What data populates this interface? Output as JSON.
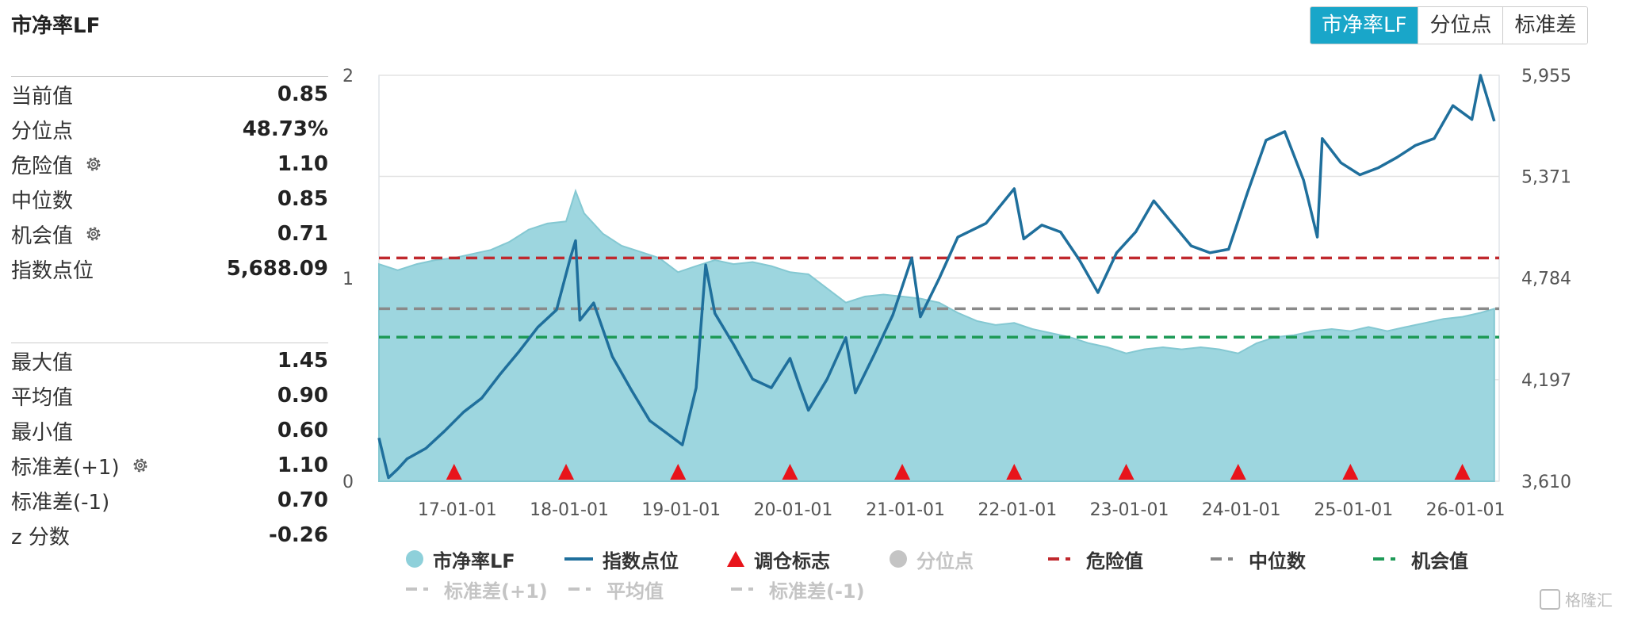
{
  "header": {
    "title": "市净率LF"
  },
  "tabs": [
    {
      "label": "市净率LF",
      "active": true
    },
    {
      "label": "分位点",
      "active": false
    },
    {
      "label": "标准差",
      "active": false
    }
  ],
  "stats_top": [
    {
      "label": "当前值",
      "value": "0.85",
      "gear": false
    },
    {
      "label": "分位点",
      "value": "48.73%",
      "gear": false
    },
    {
      "label": "危险值",
      "value": "1.10",
      "gear": true
    },
    {
      "label": "中位数",
      "value": "0.85",
      "gear": false
    },
    {
      "label": "机会值",
      "value": "0.71",
      "gear": true
    },
    {
      "label": "指数点位",
      "value": "5,688.09",
      "gear": false
    }
  ],
  "stats_bottom": [
    {
      "label": "最大值",
      "value": "1.45",
      "gear": false
    },
    {
      "label": "平均值",
      "value": "0.90",
      "gear": false
    },
    {
      "label": "最小值",
      "value": "0.60",
      "gear": false
    },
    {
      "label": "标准差(+1)",
      "value": "1.10",
      "gear": true
    },
    {
      "label": "标准差(-1)",
      "value": "0.70",
      "gear": false
    },
    {
      "label": "z 分数",
      "value": "-0.26",
      "gear": false
    }
  ],
  "legend": [
    {
      "label": "市净率LF",
      "kind": "circle",
      "color": "#8ed0da",
      "dim": false
    },
    {
      "label": "指数点位",
      "kind": "line",
      "color": "#1f6f9c",
      "dim": false
    },
    {
      "label": "调仓标志",
      "kind": "triangle",
      "color": "#e8141b",
      "dim": false
    },
    {
      "label": "分位点",
      "kind": "circle",
      "color": "#c4c4c4",
      "dim": true
    },
    {
      "label": "危险值",
      "kind": "dash",
      "color": "#c0282d",
      "dim": false
    },
    {
      "label": "中位数",
      "kind": "dash",
      "color": "#888888",
      "dim": false
    },
    {
      "label": "机会值",
      "kind": "dash",
      "color": "#1e9a57",
      "dim": false
    },
    {
      "label": "标准差(+1)",
      "kind": "dash",
      "color": "#c4c4c4",
      "dim": true
    },
    {
      "label": "平均值",
      "kind": "dash",
      "color": "#c4c4c4",
      "dim": true
    },
    {
      "label": "标准差(-1)",
      "kind": "dash",
      "color": "#c4c4c4",
      "dim": true
    }
  ],
  "watermark": "格隆汇",
  "chart_data": {
    "type": "area",
    "x_range": [
      "2016-05-01",
      "2026-05-01"
    ],
    "x_ticks": [
      {
        "date": "2017-01-01",
        "label": "17-01-01"
      },
      {
        "date": "2018-01-01",
        "label": "18-01-01"
      },
      {
        "date": "2019-01-01",
        "label": "19-01-01"
      },
      {
        "date": "2020-01-01",
        "label": "20-01-01"
      },
      {
        "date": "2021-01-01",
        "label": "21-01-01"
      },
      {
        "date": "2022-01-01",
        "label": "22-01-01"
      },
      {
        "date": "2023-01-01",
        "label": "23-01-01"
      },
      {
        "date": "2024-01-01",
        "label": "24-01-01"
      },
      {
        "date": "2025-01-01",
        "label": "25-01-01"
      },
      {
        "date": "2026-01-01",
        "label": "26-01-01"
      }
    ],
    "y_left": {
      "min": 0,
      "max": 2,
      "ticks": [
        "0",
        "1",
        "2"
      ]
    },
    "y_right": {
      "min": 3610,
      "max": 5955,
      "ticks": [
        "3,610",
        "4,197",
        "4,784",
        "5,371",
        "5,955"
      ]
    },
    "reference_lines": {
      "danger": 1.1,
      "median": 0.85,
      "opportunity": 0.71
    },
    "rebalance_markers": [
      "2017-01-01",
      "2018-01-01",
      "2019-01-01",
      "2020-01-01",
      "2021-01-01",
      "2022-01-01",
      "2023-01-01",
      "2024-01-01",
      "2025-01-01",
      "2026-01-01"
    ],
    "series": [
      {
        "name": "市净率LF",
        "axis": "left",
        "points": [
          [
            "2016-05-01",
            1.07
          ],
          [
            "2016-07-01",
            1.04
          ],
          [
            "2016-09-01",
            1.07
          ],
          [
            "2016-11-01",
            1.09
          ],
          [
            "2017-01-01",
            1.1
          ],
          [
            "2017-03-01",
            1.12
          ],
          [
            "2017-05-01",
            1.14
          ],
          [
            "2017-07-01",
            1.18
          ],
          [
            "2017-09-01",
            1.24
          ],
          [
            "2017-11-01",
            1.27
          ],
          [
            "2018-01-01",
            1.28
          ],
          [
            "2018-02-01",
            1.43
          ],
          [
            "2018-03-01",
            1.32
          ],
          [
            "2018-05-01",
            1.22
          ],
          [
            "2018-07-01",
            1.16
          ],
          [
            "2018-09-01",
            1.13
          ],
          [
            "2018-11-01",
            1.1
          ],
          [
            "2019-01-01",
            1.03
          ],
          [
            "2019-03-01",
            1.06
          ],
          [
            "2019-05-01",
            1.09
          ],
          [
            "2019-07-01",
            1.07
          ],
          [
            "2019-09-01",
            1.08
          ],
          [
            "2019-11-01",
            1.06
          ],
          [
            "2020-01-01",
            1.03
          ],
          [
            "2020-03-01",
            1.02
          ],
          [
            "2020-05-01",
            0.95
          ],
          [
            "2020-07-01",
            0.88
          ],
          [
            "2020-09-01",
            0.91
          ],
          [
            "2020-11-01",
            0.92
          ],
          [
            "2021-01-01",
            0.91
          ],
          [
            "2021-03-01",
            0.9
          ],
          [
            "2021-05-01",
            0.88
          ],
          [
            "2021-07-01",
            0.83
          ],
          [
            "2021-09-01",
            0.79
          ],
          [
            "2021-11-01",
            0.77
          ],
          [
            "2022-01-01",
            0.78
          ],
          [
            "2022-03-01",
            0.75
          ],
          [
            "2022-05-01",
            0.73
          ],
          [
            "2022-07-01",
            0.71
          ],
          [
            "2022-09-01",
            0.68
          ],
          [
            "2022-11-01",
            0.66
          ],
          [
            "2023-01-01",
            0.63
          ],
          [
            "2023-03-01",
            0.65
          ],
          [
            "2023-05-01",
            0.66
          ],
          [
            "2023-07-01",
            0.65
          ],
          [
            "2023-09-01",
            0.66
          ],
          [
            "2023-11-01",
            0.65
          ],
          [
            "2024-01-01",
            0.63
          ],
          [
            "2024-03-01",
            0.68
          ],
          [
            "2024-05-01",
            0.71
          ],
          [
            "2024-07-01",
            0.72
          ],
          [
            "2024-09-01",
            0.74
          ],
          [
            "2024-11-01",
            0.75
          ],
          [
            "2025-01-01",
            0.74
          ],
          [
            "2025-03-01",
            0.76
          ],
          [
            "2025-05-01",
            0.74
          ],
          [
            "2025-07-01",
            0.76
          ],
          [
            "2025-09-01",
            0.78
          ],
          [
            "2025-11-01",
            0.8
          ],
          [
            "2026-01-01",
            0.81
          ],
          [
            "2026-03-01",
            0.83
          ],
          [
            "2026-04-15",
            0.85
          ]
        ]
      },
      {
        "name": "指数点位",
        "axis": "right",
        "points": [
          [
            "2016-05-01",
            3860
          ],
          [
            "2016-06-01",
            3630
          ],
          [
            "2016-07-01",
            3680
          ],
          [
            "2016-08-01",
            3740
          ],
          [
            "2016-10-01",
            3800
          ],
          [
            "2016-12-01",
            3900
          ],
          [
            "2017-02-01",
            4010
          ],
          [
            "2017-04-01",
            4090
          ],
          [
            "2017-06-01",
            4230
          ],
          [
            "2017-08-01",
            4360
          ],
          [
            "2017-10-01",
            4500
          ],
          [
            "2017-12-01",
            4600
          ],
          [
            "2018-01-15",
            4900
          ],
          [
            "2018-02-01",
            5000
          ],
          [
            "2018-02-15",
            4540
          ],
          [
            "2018-04-01",
            4640
          ],
          [
            "2018-06-01",
            4330
          ],
          [
            "2018-08-01",
            4140
          ],
          [
            "2018-10-01",
            3960
          ],
          [
            "2018-12-01",
            3880
          ],
          [
            "2019-01-15",
            3820
          ],
          [
            "2019-03-01",
            4150
          ],
          [
            "2019-04-01",
            4860
          ],
          [
            "2019-05-01",
            4580
          ],
          [
            "2019-07-01",
            4400
          ],
          [
            "2019-09-01",
            4200
          ],
          [
            "2019-11-01",
            4150
          ],
          [
            "2020-01-01",
            4320
          ],
          [
            "2020-02-01",
            4160
          ],
          [
            "2020-03-01",
            4020
          ],
          [
            "2020-05-01",
            4200
          ],
          [
            "2020-07-01",
            4440
          ],
          [
            "2020-08-01",
            4120
          ],
          [
            "2020-10-01",
            4340
          ],
          [
            "2020-12-01",
            4570
          ],
          [
            "2021-02-01",
            4900
          ],
          [
            "2021-03-01",
            4560
          ],
          [
            "2021-05-01",
            4780
          ],
          [
            "2021-07-01",
            5020
          ],
          [
            "2021-10-01",
            5100
          ],
          [
            "2022-01-01",
            5300
          ],
          [
            "2022-02-01",
            5010
          ],
          [
            "2022-04-01",
            5090
          ],
          [
            "2022-06-01",
            5050
          ],
          [
            "2022-08-01",
            4890
          ],
          [
            "2022-10-01",
            4700
          ],
          [
            "2022-12-01",
            4930
          ],
          [
            "2023-02-01",
            5050
          ],
          [
            "2023-04-01",
            5230
          ],
          [
            "2023-06-01",
            5100
          ],
          [
            "2023-08-01",
            4970
          ],
          [
            "2023-10-01",
            4930
          ],
          [
            "2023-12-01",
            4950
          ],
          [
            "2024-02-01",
            5280
          ],
          [
            "2024-04-01",
            5580
          ],
          [
            "2024-06-01",
            5630
          ],
          [
            "2024-08-01",
            5350
          ],
          [
            "2024-09-15",
            5020
          ],
          [
            "2024-10-01",
            5590
          ],
          [
            "2024-12-01",
            5450
          ],
          [
            "2025-02-01",
            5380
          ],
          [
            "2025-04-01",
            5420
          ],
          [
            "2025-06-01",
            5480
          ],
          [
            "2025-08-01",
            5550
          ],
          [
            "2025-10-01",
            5590
          ],
          [
            "2025-12-01",
            5780
          ],
          [
            "2026-02-01",
            5700
          ],
          [
            "2026-03-01",
            5955
          ],
          [
            "2026-04-15",
            5690
          ]
        ]
      }
    ]
  }
}
